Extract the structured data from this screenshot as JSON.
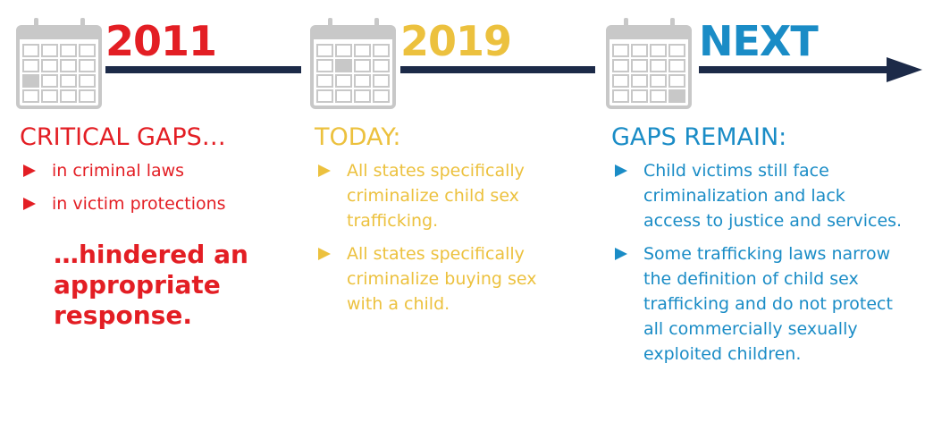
{
  "columns": [
    {
      "year": "2011",
      "heading": "CRITICAL GAPS…",
      "bullets": [
        "in criminal laws",
        "in victim protections"
      ],
      "conclusion": "…hindered an appropriate response."
    },
    {
      "year": "2019",
      "heading": "TODAY:",
      "bullets": [
        "All states specifically criminalize child sex trafficking.",
        "All states specifically criminalize buying sex with a child."
      ]
    },
    {
      "year": "NEXT",
      "heading": "GAPS REMAIN:",
      "bullets": [
        "Child victims still face criminalization and lack access to justice and services.",
        "Some trafficking laws narrow the definition of child sex trafficking and do not protect all commercially sexually exploited children."
      ]
    }
  ]
}
